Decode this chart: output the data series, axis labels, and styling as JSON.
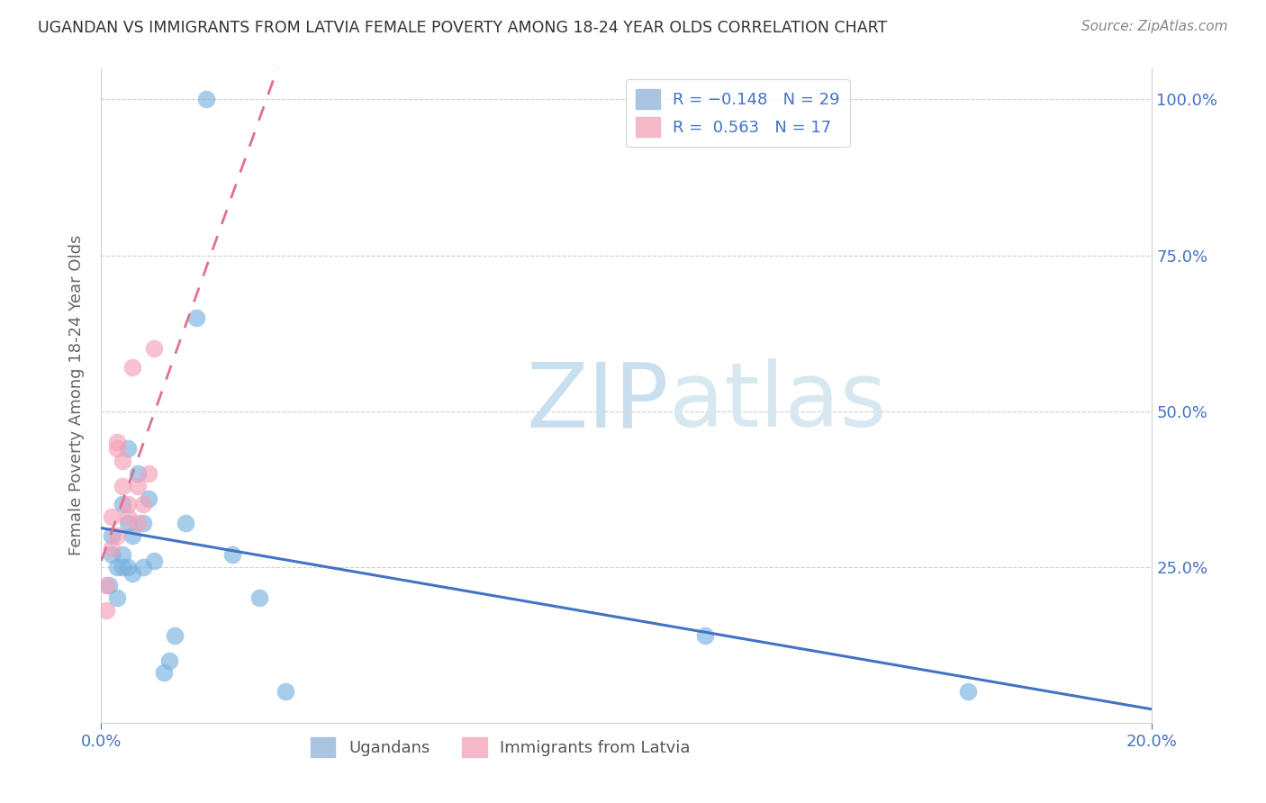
{
  "title": "UGANDAN VS IMMIGRANTS FROM LATVIA FEMALE POVERTY AMONG 18-24 YEAR OLDS CORRELATION CHART",
  "source": "Source: ZipAtlas.com",
  "ylabel": "Female Poverty Among 18-24 Year Olds",
  "xlim": [
    0.0,
    0.2
  ],
  "ylim": [
    0.0,
    1.05
  ],
  "xtick_vals": [
    0.0,
    0.2
  ],
  "xtick_labels": [
    "0.0%",
    "20.0%"
  ],
  "ytick_vals": [
    0.25,
    0.5,
    0.75,
    1.0
  ],
  "ytick_labels": [
    "25.0%",
    "50.0%",
    "75.0%",
    "100.0%"
  ],
  "ugandan_x": [
    0.0015,
    0.002,
    0.002,
    0.003,
    0.003,
    0.004,
    0.004,
    0.004,
    0.005,
    0.005,
    0.005,
    0.006,
    0.006,
    0.007,
    0.008,
    0.008,
    0.009,
    0.01,
    0.012,
    0.013,
    0.014,
    0.016,
    0.018,
    0.02,
    0.025,
    0.03,
    0.035,
    0.115,
    0.165
  ],
  "ugandan_y": [
    0.22,
    0.27,
    0.3,
    0.25,
    0.2,
    0.27,
    0.25,
    0.35,
    0.32,
    0.44,
    0.25,
    0.3,
    0.24,
    0.4,
    0.32,
    0.25,
    0.36,
    0.26,
    0.08,
    0.1,
    0.14,
    0.32,
    0.65,
    1.0,
    0.27,
    0.2,
    0.05,
    0.14,
    0.05
  ],
  "latvia_x": [
    0.001,
    0.001,
    0.002,
    0.002,
    0.003,
    0.003,
    0.003,
    0.004,
    0.004,
    0.005,
    0.005,
    0.006,
    0.007,
    0.007,
    0.008,
    0.009,
    0.01
  ],
  "latvia_y": [
    0.18,
    0.22,
    0.28,
    0.33,
    0.45,
    0.44,
    0.3,
    0.38,
    0.42,
    0.35,
    0.33,
    0.57,
    0.38,
    0.32,
    0.35,
    0.4,
    0.6
  ],
  "ugandan_color": "#7ab3e0",
  "latvia_color": "#f4a0b8",
  "ugandan_line_color": "#4472c4",
  "latvia_line_color": "#e07090",
  "bg_color": "#ffffff",
  "grid_color": "#d0d0d0",
  "watermark_zip": "ZIP",
  "watermark_atlas": "atlas",
  "watermark_color": "#ddeef8"
}
